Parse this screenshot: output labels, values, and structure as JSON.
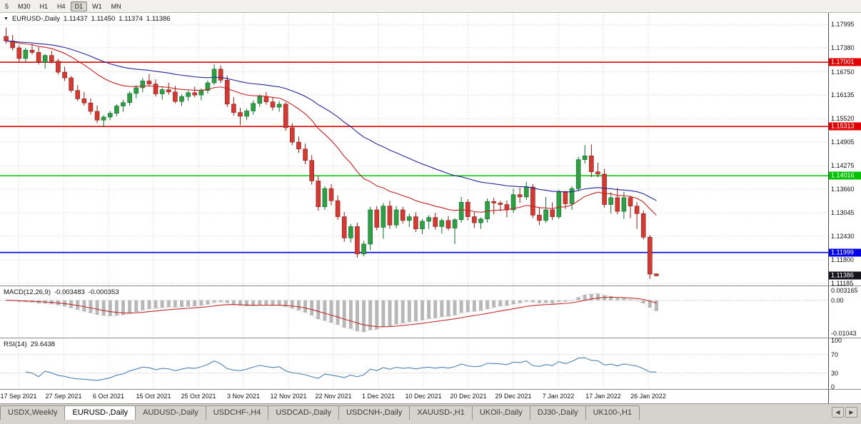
{
  "toolbar": {
    "timeframes": [
      "5",
      "M30",
      "H1",
      "H4",
      "D1",
      "W1",
      "MN"
    ],
    "active": "D1"
  },
  "icons": {
    "symbol_dropdown": "▼",
    "tab_scroll_left": "◀",
    "tab_scroll_right": "▶"
  },
  "main_chart": {
    "symbol": "EURUSD-,Daily",
    "open": "1.11437",
    "high": "1.11450",
    "low": "1.11374",
    "close": "1.11386",
    "current_badge_color": "#14141e"
  },
  "date_axis": {
    "labels": [
      "17 Sep 2021",
      "27 Sep 2021",
      "6 Oct 2021",
      "15 Oct 2021",
      "25 Oct 2021",
      "3 Nov 2021",
      "12 Nov 2021",
      "22 Nov 2021",
      "1 Dec 2021",
      "10 Dec 2021",
      "20 Dec 2021",
      "29 Dec 2021",
      "7 Jan 2022",
      "17 Jan 2022",
      "26 Jan 2022"
    ]
  },
  "tabs": {
    "items": [
      "USDX,Weekly",
      "EURUSD-,Daily",
      "AUDUSD-,Daily",
      "USDCHF-,H4",
      "USDCAD-,Daily",
      "USDCNH-,Daily",
      "XAUUSD-,H1",
      "UKOil-,Daily",
      "DJ30-,Daily",
      "UK100-,H1"
    ],
    "active": "EURUSD-,Daily"
  },
  "chart_data": [
    {
      "type": "candlestick",
      "title": "EURUSD-,Daily",
      "ylim": [
        1.1113,
        1.183
      ],
      "yticks": [
        "1.17995",
        "1.17380",
        "1.16750",
        "1.16135",
        "1.15520",
        "1.14905",
        "1.14275",
        "1.13660",
        "1.13045",
        "1.12430",
        "1.11800",
        "1.11185"
      ],
      "current_price": "1.11386",
      "colors": {
        "up": "#2f9e45",
        "up_border": "#116b2b",
        "down": "#d13b34",
        "down_border": "#8c1d18"
      },
      "moving_averages": [
        {
          "name": "fast-ma",
          "period": 20,
          "color": "#c32222"
        },
        {
          "name": "slow-ma",
          "period": 45,
          "color": "#24249a"
        }
      ],
      "hlines": [
        {
          "label": "1.17001",
          "value": 1.17001,
          "color": "#e00000"
        },
        {
          "label": "1.15313",
          "value": 1.15313,
          "color": "#e00000"
        },
        {
          "label": "1.14016",
          "value": 1.14016,
          "color": "#00c300"
        },
        {
          "label": "1.11999",
          "value": 1.11999,
          "color": "#0000e6"
        }
      ],
      "ohlc": [
        [
          1.1768,
          1.1791,
          1.1749,
          1.1756
        ],
        [
          1.1756,
          1.1772,
          1.1731,
          1.1738
        ],
        [
          1.1738,
          1.1745,
          1.17,
          1.171
        ],
        [
          1.171,
          1.1738,
          1.1702,
          1.1732
        ],
        [
          1.1732,
          1.1749,
          1.172,
          1.1726
        ],
        [
          1.1726,
          1.174,
          1.1694,
          1.17
        ],
        [
          1.17,
          1.1722,
          1.1683,
          1.1718
        ],
        [
          1.1718,
          1.173,
          1.1697,
          1.1703
        ],
        [
          1.1703,
          1.1709,
          1.1668,
          1.1674
        ],
        [
          1.1674,
          1.1688,
          1.1651,
          1.1659
        ],
        [
          1.1659,
          1.1664,
          1.162,
          1.1626
        ],
        [
          1.1626,
          1.164,
          1.1598,
          1.1604
        ],
        [
          1.1604,
          1.1622,
          1.1586,
          1.1593
        ],
        [
          1.1593,
          1.1605,
          1.1563,
          1.1571
        ],
        [
          1.1571,
          1.1586,
          1.154,
          1.1548
        ],
        [
          1.1548,
          1.1561,
          1.1529,
          1.1556
        ],
        [
          1.1556,
          1.1572,
          1.1548,
          1.1566
        ],
        [
          1.1566,
          1.159,
          1.1558,
          1.1585
        ],
        [
          1.1585,
          1.1601,
          1.157,
          1.1594
        ],
        [
          1.1594,
          1.1624,
          1.1586,
          1.1618
        ],
        [
          1.1618,
          1.164,
          1.1605,
          1.1633
        ],
        [
          1.1633,
          1.1659,
          1.1621,
          1.1651
        ],
        [
          1.1651,
          1.1669,
          1.1636,
          1.1643
        ],
        [
          1.1643,
          1.1655,
          1.161,
          1.1617
        ],
        [
          1.1617,
          1.1634,
          1.1602,
          1.1628
        ],
        [
          1.1628,
          1.1646,
          1.1615,
          1.1622
        ],
        [
          1.1622,
          1.1638,
          1.1592,
          1.1597
        ],
        [
          1.1597,
          1.1615,
          1.1585,
          1.161
        ],
        [
          1.161,
          1.1626,
          1.1598,
          1.162
        ],
        [
          1.162,
          1.1636,
          1.1608,
          1.1614
        ],
        [
          1.1614,
          1.1631,
          1.16,
          1.1626
        ],
        [
          1.1626,
          1.1652,
          1.1618,
          1.1646
        ],
        [
          1.1646,
          1.1695,
          1.164,
          1.1682
        ],
        [
          1.1682,
          1.1692,
          1.1645,
          1.1653
        ],
        [
          1.1653,
          1.1665,
          1.1582,
          1.159
        ],
        [
          1.159,
          1.1608,
          1.156,
          1.1568
        ],
        [
          1.1568,
          1.158,
          1.1535,
          1.1558
        ],
        [
          1.1558,
          1.1578,
          1.1548,
          1.1572
        ],
        [
          1.1572,
          1.16,
          1.1562,
          1.1592
        ],
        [
          1.1592,
          1.1616,
          1.1583,
          1.161
        ],
        [
          1.161,
          1.1622,
          1.1588,
          1.1596
        ],
        [
          1.1596,
          1.1609,
          1.1573,
          1.1582
        ],
        [
          1.1582,
          1.1598,
          1.157,
          1.159
        ],
        [
          1.159,
          1.1595,
          1.152,
          1.1528
        ],
        [
          1.1528,
          1.154,
          1.1482,
          1.149
        ],
        [
          1.149,
          1.1505,
          1.1462,
          1.1472
        ],
        [
          1.1472,
          1.1486,
          1.1432,
          1.1442
        ],
        [
          1.1442,
          1.1456,
          1.1378,
          1.1388
        ],
        [
          1.1388,
          1.1402,
          1.131,
          1.132
        ],
        [
          1.132,
          1.1374,
          1.1312,
          1.1368
        ],
        [
          1.1368,
          1.138,
          1.1324,
          1.1336
        ],
        [
          1.1336,
          1.135,
          1.1286,
          1.1294
        ],
        [
          1.1294,
          1.1306,
          1.1228,
          1.1238
        ],
        [
          1.1238,
          1.1275,
          1.1226,
          1.1268
        ],
        [
          1.1268,
          1.1278,
          1.1186,
          1.1196
        ],
        [
          1.1196,
          1.123,
          1.119,
          1.1222
        ],
        [
          1.1222,
          1.132,
          1.1206,
          1.1312
        ],
        [
          1.1312,
          1.1322,
          1.1258,
          1.1266
        ],
        [
          1.1266,
          1.133,
          1.1236,
          1.1322
        ],
        [
          1.1322,
          1.1336,
          1.1262,
          1.1272
        ],
        [
          1.1272,
          1.1322,
          1.1264,
          1.1312
        ],
        [
          1.1312,
          1.132,
          1.1276,
          1.1284
        ],
        [
          1.1284,
          1.1302,
          1.1267,
          1.1294
        ],
        [
          1.1294,
          1.1306,
          1.1254,
          1.1262
        ],
        [
          1.1262,
          1.1288,
          1.1248,
          1.1282
        ],
        [
          1.1282,
          1.1298,
          1.1262,
          1.1292
        ],
        [
          1.1292,
          1.1304,
          1.126,
          1.1268
        ],
        [
          1.1268,
          1.129,
          1.125,
          1.1284
        ],
        [
          1.1284,
          1.1296,
          1.1258,
          1.1264
        ],
        [
          1.1264,
          1.129,
          1.1222,
          1.1286
        ],
        [
          1.1286,
          1.1346,
          1.1278,
          1.1332
        ],
        [
          1.1332,
          1.134,
          1.1284,
          1.1294
        ],
        [
          1.1294,
          1.1306,
          1.1264,
          1.1278
        ],
        [
          1.1278,
          1.1292,
          1.1262,
          1.1288
        ],
        [
          1.1288,
          1.1342,
          1.1278,
          1.1334
        ],
        [
          1.1334,
          1.1344,
          1.13,
          1.133
        ],
        [
          1.133,
          1.1336,
          1.1308,
          1.1326
        ],
        [
          1.1326,
          1.1336,
          1.1292,
          1.1312
        ],
        [
          1.1312,
          1.1368,
          1.1304,
          1.1352
        ],
        [
          1.1352,
          1.137,
          1.133,
          1.1346
        ],
        [
          1.1346,
          1.1386,
          1.1338,
          1.1372
        ],
        [
          1.1372,
          1.138,
          1.129,
          1.1298
        ],
        [
          1.1298,
          1.132,
          1.1272,
          1.1284
        ],
        [
          1.1284,
          1.1346,
          1.1278,
          1.1312
        ],
        [
          1.1312,
          1.1332,
          1.1285,
          1.1294
        ],
        [
          1.1294,
          1.1364,
          1.1288,
          1.136
        ],
        [
          1.136,
          1.1362,
          1.1314,
          1.1328
        ],
        [
          1.1328,
          1.1374,
          1.1312,
          1.1368
        ],
        [
          1.1368,
          1.1452,
          1.136,
          1.1444
        ],
        [
          1.1444,
          1.1482,
          1.1434,
          1.1454
        ],
        [
          1.1454,
          1.1484,
          1.1398,
          1.1412
        ],
        [
          1.1412,
          1.1436,
          1.1398,
          1.1406
        ],
        [
          1.1406,
          1.142,
          1.1318,
          1.1326
        ],
        [
          1.1326,
          1.1358,
          1.1302,
          1.1344
        ],
        [
          1.1344,
          1.137,
          1.13,
          1.1308
        ],
        [
          1.1308,
          1.136,
          1.1288,
          1.1344
        ],
        [
          1.1344,
          1.135,
          1.129,
          1.1322
        ],
        [
          1.1322,
          1.1332,
          1.1262,
          1.1302
        ],
        [
          1.1302,
          1.131,
          1.1234,
          1.124
        ],
        [
          1.124,
          1.1246,
          1.113,
          1.1143
        ],
        [
          1.11437,
          1.1145,
          1.11374,
          1.11386
        ]
      ]
    },
    {
      "type": "bar",
      "name": "MACD",
      "label": "MACD(12,26,9)",
      "params": [
        12,
        26,
        9
      ],
      "current_values": [
        "-0.003483",
        "-0.000353"
      ],
      "ylim": [
        -0.0112,
        0.0038
      ],
      "yticks": [
        "0.003165",
        "0.00",
        "-0.01043"
      ],
      "colors": {
        "histogram": "#b8b8b8",
        "signal": "#c32a2a",
        "main_dotted": "#9a9a9a"
      },
      "derived_from": "candlestick closes"
    },
    {
      "type": "line",
      "name": "RSI",
      "label": "RSI(14)",
      "period": 14,
      "current_value": "29.6438",
      "ylim": [
        0,
        100
      ],
      "yticks": [
        "100",
        "70",
        "30",
        "0"
      ],
      "levels": [
        70,
        30
      ],
      "color": "#4f81b4",
      "derived_from": "candlestick closes"
    }
  ]
}
